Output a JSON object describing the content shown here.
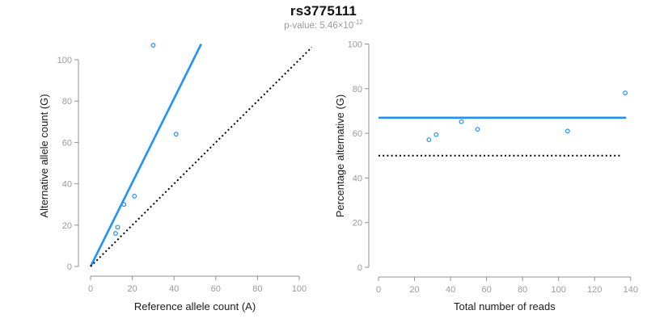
{
  "header": {
    "title": "rs3775111",
    "pvalue_label": "p-value: 5.46×10",
    "pvalue_exponent": "-12"
  },
  "colors": {
    "accent_blue": "#1E90FF",
    "axis_gray": "#919191",
    "tick_label_gray": "#9b9b9b",
    "text_black": "#1a1a1a",
    "ref_line_black": "#000000",
    "background": "#ffffff"
  },
  "chart_data": [
    {
      "type": "scatter",
      "xlabel": "Reference allele count (A)",
      "ylabel": "Alternative allele count (G)",
      "xlim": [
        0,
        100
      ],
      "ylim": [
        0,
        107
      ],
      "xticks": [
        0,
        20,
        40,
        60,
        80,
        100
      ],
      "yticks": [
        0,
        20,
        40,
        60,
        80,
        100
      ],
      "grid": false,
      "legend": null,
      "points": [
        [
          12,
          16
        ],
        [
          13,
          19
        ],
        [
          16,
          30
        ],
        [
          21,
          34
        ],
        [
          30,
          107
        ],
        [
          41,
          64
        ]
      ],
      "fit_line": {
        "slope": 2.03,
        "intercept": 0,
        "x1": 0,
        "x2": 53,
        "style": "solid",
        "color_key": "accent_blue"
      },
      "reference_line": {
        "slope": 1,
        "intercept": 0,
        "x1": 0,
        "x2": 106,
        "style": "dotted",
        "color_key": "ref_line_black"
      }
    },
    {
      "type": "scatter",
      "xlabel": "Total number of reads",
      "ylabel": "Percentage alternative (G)",
      "xlim": [
        0,
        140
      ],
      "ylim": [
        0,
        100
      ],
      "xticks": [
        0,
        20,
        40,
        60,
        80,
        100,
        120,
        140
      ],
      "yticks": [
        0,
        20,
        40,
        60,
        80,
        100
      ],
      "grid": false,
      "legend": null,
      "points": [
        [
          28,
          57.1
        ],
        [
          32,
          59.4
        ],
        [
          46,
          65.2
        ],
        [
          55,
          61.8
        ],
        [
          105,
          61.0
        ],
        [
          137,
          78.1
        ]
      ],
      "fit_line": {
        "y": 67,
        "x1": 0,
        "x2": 137.5,
        "style": "solid",
        "color_key": "accent_blue"
      },
      "reference_line": {
        "y": 50,
        "x1": 0,
        "x2": 134,
        "style": "dotted",
        "color_key": "ref_line_black"
      }
    }
  ]
}
